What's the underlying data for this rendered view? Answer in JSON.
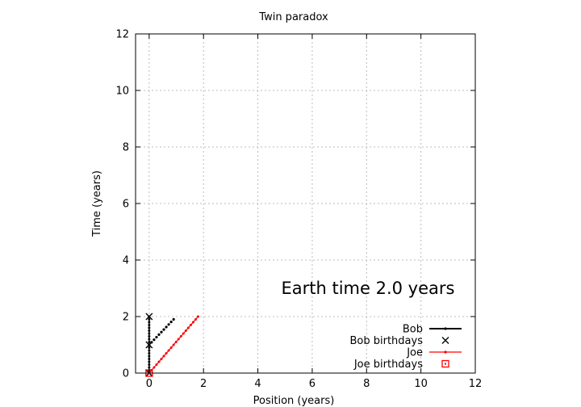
{
  "chart_data": {
    "type": "line",
    "title": "Twin paradox",
    "xlabel": "Position (years)",
    "ylabel": "Time (years)",
    "xlim": [
      -0.5,
      12
    ],
    "ylim": [
      0,
      12
    ],
    "xticks": [
      "0",
      "2",
      "4",
      "6",
      "8",
      "10",
      "12"
    ],
    "yticks": [
      "0",
      "2",
      "4",
      "6",
      "8",
      "10",
      "12"
    ],
    "grid": true,
    "legend_position": "bottom-right",
    "annotation": "Earth time  2.0 years",
    "series": [
      {
        "name": "Bob",
        "style": "line-points",
        "color": "#000000",
        "x": [
          0.0,
          0.0,
          0.0,
          0.0,
          0.0,
          0.0,
          0.0,
          0.0,
          0.0,
          0.0,
          0.0,
          0.0,
          0.0,
          0.0,
          0.0,
          0.0,
          0.0,
          0.0,
          0.0,
          0.0,
          0.0
        ],
        "y": [
          0.0,
          0.1,
          0.2,
          0.3,
          0.4,
          0.5,
          0.6,
          0.7,
          0.8,
          0.9,
          1.0,
          1.1,
          1.2,
          1.3,
          1.4,
          1.5,
          1.6,
          1.7,
          1.8,
          1.9,
          2.0
        ]
      },
      {
        "name": "Bob birthdays",
        "style": "cross",
        "color": "#000000",
        "x": [
          0,
          0,
          0
        ],
        "y": [
          0,
          1,
          2
        ]
      },
      {
        "name": "Joe",
        "style": "line-points",
        "color": "#ff0000",
        "x": [
          0.0,
          0.09,
          0.18,
          0.27,
          0.36,
          0.45,
          0.54,
          0.63,
          0.72,
          0.81,
          0.9,
          0.99,
          1.08,
          1.17,
          1.26,
          1.35,
          1.44,
          1.53,
          1.62,
          1.71,
          1.8
        ],
        "y": [
          0.0,
          0.1,
          0.2,
          0.3,
          0.4,
          0.5,
          0.6,
          0.7,
          0.8,
          0.9,
          1.0,
          1.1,
          1.2,
          1.3,
          1.4,
          1.5,
          1.6,
          1.7,
          1.8,
          1.9,
          2.0
        ]
      },
      {
        "name": "Joe birthdays",
        "style": "square",
        "color": "#ff0000",
        "x": [
          0
        ],
        "y": [
          0
        ]
      },
      {
        "name": "",
        "style": "dots",
        "color": "#000000",
        "x": [
          0.0,
          0.09,
          0.18,
          0.27,
          0.36,
          0.45,
          0.54,
          0.63,
          0.72,
          0.81,
          0.9
        ],
        "y": [
          1.0,
          1.09,
          1.18,
          1.27,
          1.36,
          1.45,
          1.54,
          1.63,
          1.72,
          1.81,
          1.9
        ]
      }
    ]
  }
}
